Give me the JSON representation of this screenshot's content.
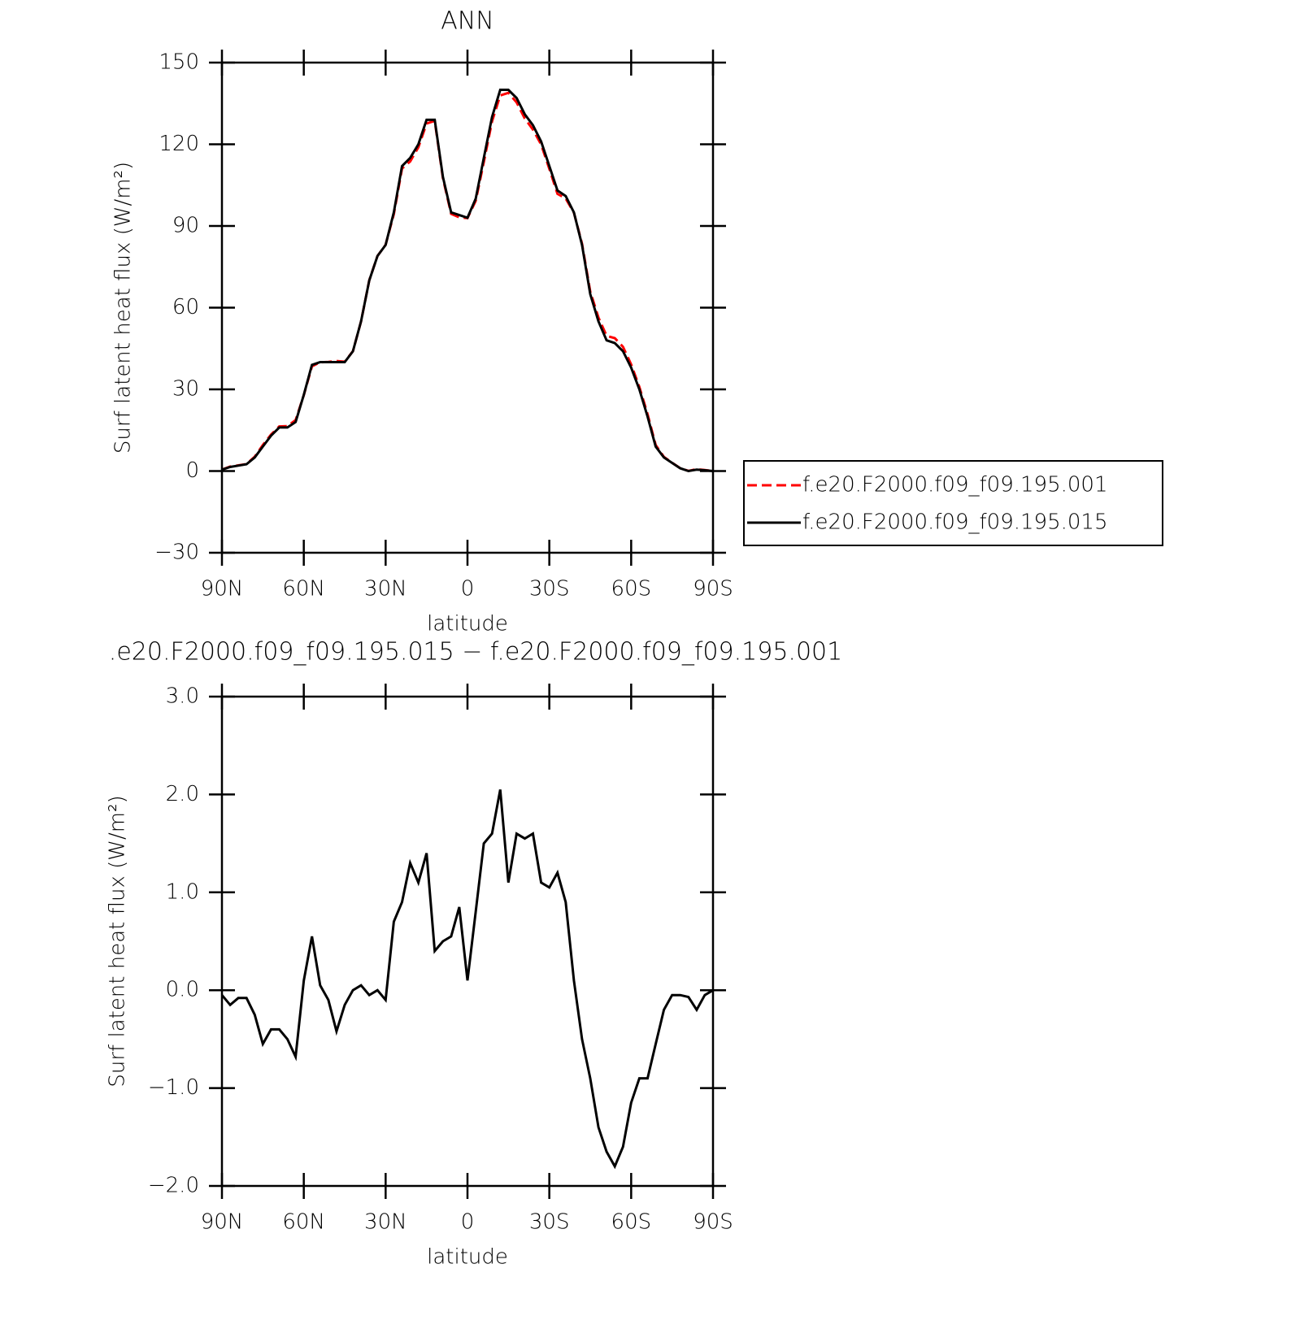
{
  "chart_data": [
    {
      "type": "line",
      "title": "ANN",
      "xlabel": "latitude",
      "ylabel": "Surf latent heat flux (W/m²)",
      "x": [
        90,
        87,
        84,
        81,
        78,
        75,
        72,
        69,
        66,
        63,
        60,
        57,
        54,
        51,
        48,
        45,
        42,
        39,
        36,
        33,
        30,
        27,
        24,
        21,
        18,
        15,
        12,
        9,
        6,
        3,
        0,
        -3,
        -6,
        -9,
        -12,
        -15,
        -18,
        -21,
        -24,
        -27,
        -30,
        -33,
        -36,
        -39,
        -42,
        -45,
        -48,
        -51,
        -54,
        -57,
        -60,
        -63,
        -66,
        -69,
        -72,
        -75,
        -78,
        -81,
        -84,
        -87,
        -90
      ],
      "xlim": [
        90,
        -90
      ],
      "xticks": [
        {
          "value": 90,
          "label": "90N"
        },
        {
          "value": 60,
          "label": "60N"
        },
        {
          "value": 30,
          "label": "30N"
        },
        0,
        {
          "value": -30,
          "label": "30S"
        },
        {
          "value": -60,
          "label": "60S"
        },
        {
          "value": -90,
          "label": "90S"
        }
      ],
      "ylim": [
        -30,
        150
      ],
      "yticks": [
        {
          "value": -30,
          "label": "−30"
        },
        0,
        30,
        60,
        90,
        120,
        150
      ],
      "series": [
        {
          "name": "f.e20.F2000.f09_f09.195.001",
          "color": "#ff0000",
          "dash": true,
          "values": [
            0.55,
            1.65,
            2.08,
            2.58,
            5.25,
            9.55,
            13.4,
            16.4,
            16.5,
            18.68,
            27.9,
            38.45,
            39.95,
            40.1,
            40.42,
            40.15,
            44,
            54.95,
            70.05,
            79,
            83.1,
            94.3,
            111.1,
            113.7,
            118.9,
            127.6,
            128.6,
            107.5,
            94.45,
            93.15,
            92.9,
            99.2,
            113.5,
            128.4,
            137.95,
            138.9,
            135.4,
            129.45,
            125.4,
            119.9,
            110.95,
            101.8,
            100.1,
            94.9,
            83.5,
            65.9,
            56.4,
            49.65,
            48.8,
            45.6,
            39.15,
            30.9,
            20.9,
            9.55,
            5.2,
            3.05,
            1.05,
            0.07,
            0.7,
            0.35,
            0
          ]
        },
        {
          "name": "f.e20.F2000.f09_f09.195.015",
          "color": "#000000",
          "dash": false,
          "values": [
            0.5,
            1.5,
            2,
            2.5,
            5,
            9,
            13,
            16,
            16,
            18,
            28,
            39,
            40,
            40,
            40,
            40,
            44,
            55,
            70,
            79,
            83,
            95,
            112,
            115,
            120,
            129,
            129,
            108,
            95,
            94,
            93,
            100,
            115,
            130,
            140,
            140,
            137,
            131,
            127,
            121,
            112,
            103,
            101,
            95,
            83,
            65,
            55,
            48,
            47,
            44,
            38,
            30,
            20,
            9,
            5,
            3,
            1,
            0,
            0.5,
            0.3,
            0
          ]
        }
      ]
    },
    {
      "type": "line",
      "title": ".e20.F2000.f09_f09.195.015 − f.e20.F2000.f09_f09.195.001",
      "xlabel": "latitude",
      "ylabel": "Surf latent heat flux (W/m²)",
      "x": [
        90,
        87,
        84,
        81,
        78,
        75,
        72,
        69,
        66,
        63,
        60,
        57,
        54,
        51,
        48,
        45,
        42,
        39,
        36,
        33,
        30,
        27,
        24,
        21,
        18,
        15,
        12,
        9,
        6,
        3,
        0,
        -3,
        -6,
        -9,
        -12,
        -15,
        -18,
        -21,
        -24,
        -27,
        -30,
        -33,
        -36,
        -39,
        -42,
        -45,
        -48,
        -51,
        -54,
        -57,
        -60,
        -63,
        -66,
        -69,
        -72,
        -75,
        -78,
        -81,
        -84,
        -87,
        -90
      ],
      "xlim": [
        90,
        -90
      ],
      "xticks": [
        {
          "value": 90,
          "label": "90N"
        },
        {
          "value": 60,
          "label": "60N"
        },
        {
          "value": 30,
          "label": "30N"
        },
        0,
        {
          "value": -30,
          "label": "30S"
        },
        {
          "value": -60,
          "label": "60S"
        },
        {
          "value": -90,
          "label": "90S"
        }
      ],
      "ylim": [
        -2,
        3
      ],
      "yticks": [
        {
          "value": -2,
          "label": "−2.0"
        },
        {
          "value": -1,
          "label": "−1.0"
        },
        {
          "value": 0,
          "label": "0.0"
        },
        {
          "value": 1,
          "label": "1.0"
        },
        {
          "value": 2,
          "label": "2.0"
        },
        {
          "value": 3,
          "label": "3.0"
        }
      ],
      "series": [
        {
          "color": "#000000",
          "dash": false,
          "values": [
            -0.05,
            -0.15,
            -0.08,
            -0.08,
            -0.25,
            -0.55,
            -0.4,
            -0.4,
            -0.5,
            -0.68,
            0.1,
            0.55,
            0.05,
            -0.1,
            -0.42,
            -0.15,
            0,
            0.05,
            -0.05,
            0,
            -0.1,
            0.7,
            0.9,
            1.3,
            1.1,
            1.4,
            0.4,
            0.5,
            0.55,
            0.85,
            0.1,
            0.8,
            1.5,
            1.6,
            2.05,
            1.1,
            1.6,
            1.55,
            1.6,
            1.1,
            1.05,
            1.2,
            0.9,
            0.1,
            -0.5,
            -0.9,
            -1.4,
            -1.65,
            -1.8,
            -1.6,
            -1.15,
            -0.9,
            -0.9,
            -0.55,
            -0.2,
            -0.05,
            -0.05,
            -0.07,
            -0.2,
            -0.05,
            0
          ]
        }
      ]
    }
  ]
}
